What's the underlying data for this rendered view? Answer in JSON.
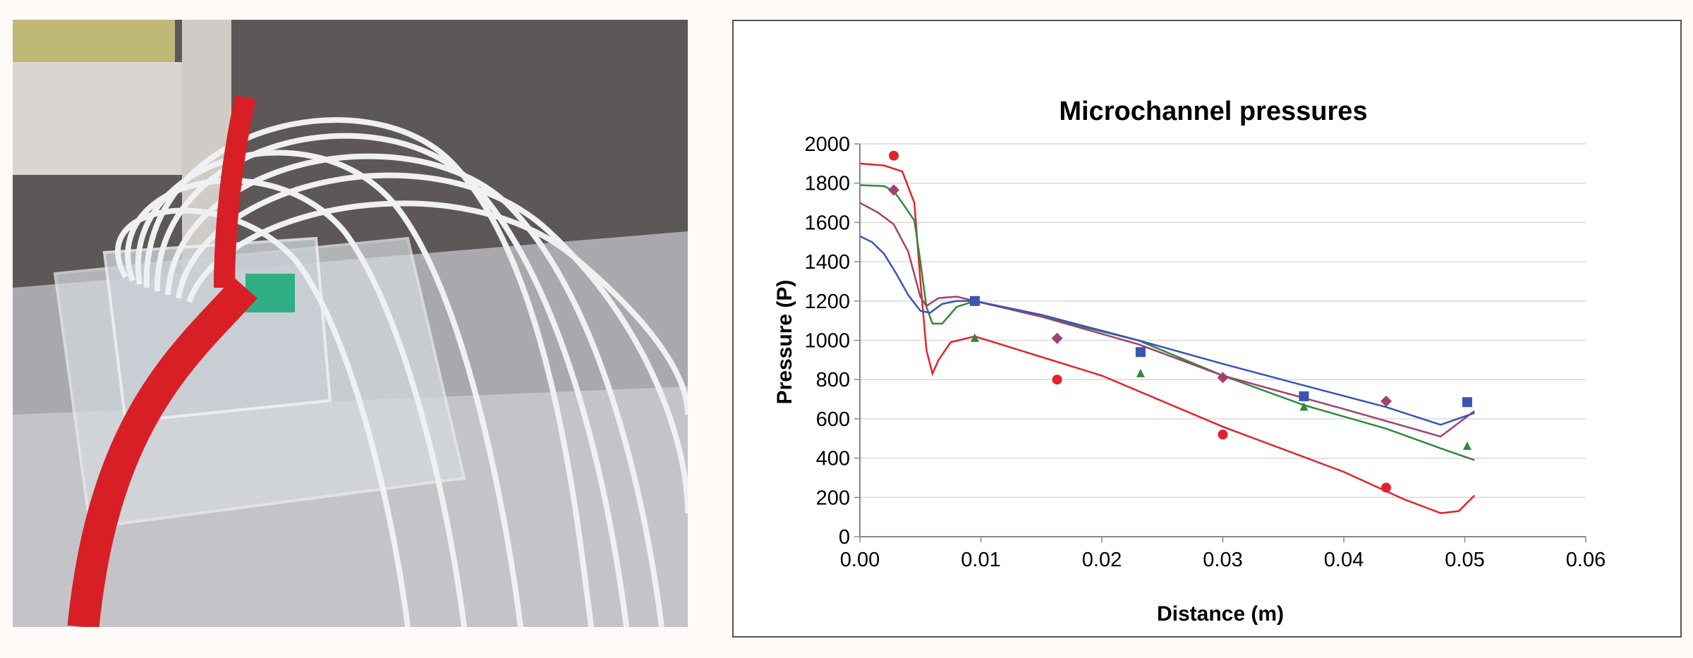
{
  "photo": {
    "description_icon": "photo-microchannel-apparatus"
  },
  "chart_data": {
    "type": "line",
    "title": "Microchannel  pressures",
    "xlabel": "Distance (m)",
    "ylabel": "Pressure (P)",
    "xlim": [
      0,
      0.06
    ],
    "ylim": [
      0,
      2000
    ],
    "xticks": [
      "0.00",
      "0.01",
      "0.02",
      "0.03",
      "0.04",
      "0.05",
      "0.06"
    ],
    "yticks": [
      "0",
      "200",
      "400",
      "600",
      "800",
      "1000",
      "1200",
      "1400",
      "1600",
      "1800",
      "2000"
    ],
    "grid": "horizontal",
    "legend": "none",
    "series": [
      {
        "color": "#e3232b",
        "line": [
          [
            0,
            1900
          ],
          [
            0.002,
            1890
          ],
          [
            0.0035,
            1860
          ],
          [
            0.0045,
            1700
          ],
          [
            0.005,
            1300
          ],
          [
            0.0055,
            950
          ],
          [
            0.006,
            830
          ],
          [
            0.0065,
            900
          ],
          [
            0.0075,
            990
          ],
          [
            0.0095,
            1020
          ],
          [
            0.02,
            820
          ],
          [
            0.03,
            560
          ],
          [
            0.04,
            330
          ],
          [
            0.045,
            190
          ],
          [
            0.048,
            120
          ],
          [
            0.0495,
            130
          ],
          [
            0.0508,
            210
          ]
        ],
        "marker": "circle",
        "points": [
          [
            0.0028,
            1940
          ],
          [
            0.0163,
            800
          ],
          [
            0.03,
            520
          ],
          [
            0.0435,
            250
          ]
        ]
      },
      {
        "color": "#2f8a3b",
        "line": [
          [
            0,
            1790
          ],
          [
            0.002,
            1785
          ],
          [
            0.0028,
            1760
          ],
          [
            0.0035,
            1700
          ],
          [
            0.0045,
            1610
          ],
          [
            0.005,
            1400
          ],
          [
            0.0055,
            1170
          ],
          [
            0.006,
            1085
          ],
          [
            0.0068,
            1085
          ],
          [
            0.008,
            1170
          ],
          [
            0.0095,
            1200
          ],
          [
            0.015,
            1120
          ],
          [
            0.023,
            1000
          ],
          [
            0.03,
            820
          ],
          [
            0.0367,
            670
          ],
          [
            0.0435,
            550
          ],
          [
            0.048,
            450
          ],
          [
            0.0508,
            390
          ]
        ],
        "marker": "triangle",
        "points": [
          [
            0.0095,
            1010
          ],
          [
            0.0232,
            830
          ],
          [
            0.0367,
            660
          ],
          [
            0.0502,
            460
          ]
        ]
      },
      {
        "color": "#a0426f",
        "line": [
          [
            0,
            1700
          ],
          [
            0.0015,
            1650
          ],
          [
            0.0028,
            1590
          ],
          [
            0.004,
            1450
          ],
          [
            0.005,
            1220
          ],
          [
            0.0055,
            1175
          ],
          [
            0.0065,
            1215
          ],
          [
            0.008,
            1222
          ],
          [
            0.0095,
            1200
          ],
          [
            0.015,
            1120
          ],
          [
            0.023,
            980
          ],
          [
            0.03,
            820
          ],
          [
            0.04,
            650
          ],
          [
            0.048,
            510
          ],
          [
            0.0508,
            640
          ]
        ],
        "marker": "diamond",
        "points": [
          [
            0.0028,
            1765
          ],
          [
            0.0163,
            1010
          ],
          [
            0.03,
            810
          ],
          [
            0.0435,
            690
          ]
        ]
      },
      {
        "color": "#3a54b4",
        "line": [
          [
            0,
            1530
          ],
          [
            0.001,
            1500
          ],
          [
            0.002,
            1440
          ],
          [
            0.003,
            1340
          ],
          [
            0.004,
            1230
          ],
          [
            0.005,
            1150
          ],
          [
            0.0058,
            1140
          ],
          [
            0.0068,
            1185
          ],
          [
            0.008,
            1200
          ],
          [
            0.0095,
            1200
          ],
          [
            0.015,
            1130
          ],
          [
            0.023,
            1000
          ],
          [
            0.03,
            880
          ],
          [
            0.0367,
            770
          ],
          [
            0.0435,
            660
          ],
          [
            0.048,
            570
          ],
          [
            0.0508,
            630
          ]
        ],
        "marker": "square",
        "points": [
          [
            0.0095,
            1200
          ],
          [
            0.0232,
            940
          ],
          [
            0.0367,
            715
          ],
          [
            0.0502,
            685
          ]
        ]
      }
    ]
  }
}
